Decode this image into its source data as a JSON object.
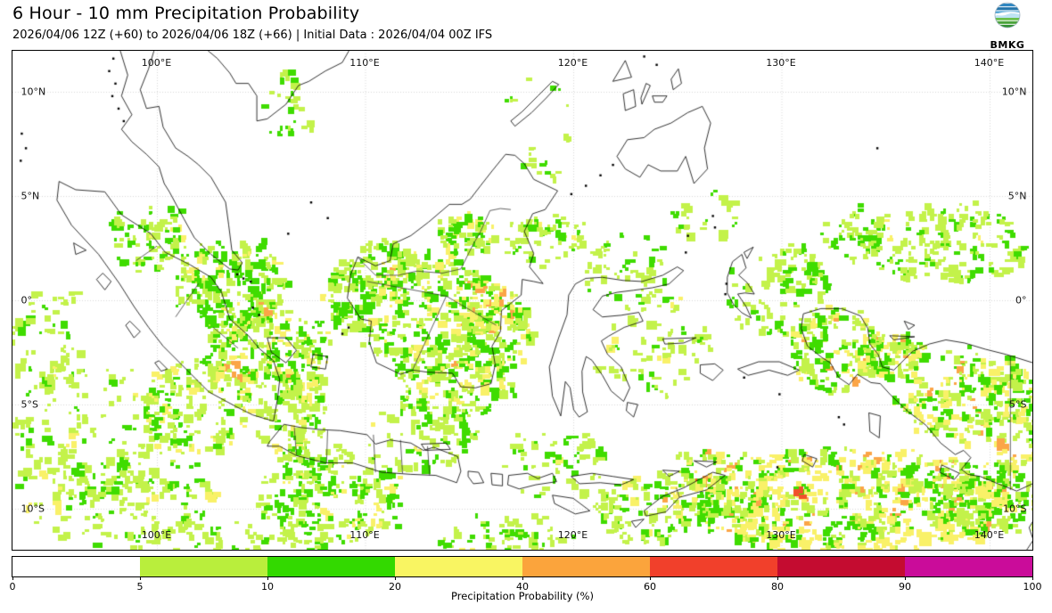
{
  "header": {
    "title": "6 Hour - 10 mm Precipitation Probability",
    "subtitle": "2026/04/06 12Z (+60) to 2026/04/06 18Z (+66) | Initial Data : 2026/04/04 00Z IFS",
    "logo": {
      "text": "BMKG"
    }
  },
  "map": {
    "lon_tick_labels": [
      "100°E",
      "110°E",
      "120°E",
      "130°E",
      "140°E"
    ],
    "lat_tick_labels": [
      "10°N",
      "5°N",
      "0°",
      "5°S",
      "10°S"
    ]
  },
  "colorbar": {
    "axis_label": "Precipitation Probability (%)",
    "tick_labels": [
      "0",
      "5",
      "10",
      "20",
      "40",
      "60",
      "80",
      "90",
      "100"
    ],
    "segment_colors": [
      "#ffffff",
      "#b9ee3c",
      "#33d900",
      "#f9f562",
      "#fba43c",
      "#f1402b",
      "#c40c30",
      "#ca0c9a"
    ]
  },
  "overlay_palette": {
    "p5": "#c3f24a",
    "p10": "#3fdc00",
    "p20": "#f9f168",
    "p40": "#fba547",
    "p60": "#f1502b"
  },
  "precip_clusters_format": "[center_x_px, center_y_px, radius_x, radius_y, blob_count, w_5_10, w_10_20, w_20_40, w_40_60, w_60_80]",
  "precip_clusters": [
    [
      95,
      500,
      85,
      115,
      120,
      0.75,
      0.2,
      0.05,
      0,
      0
    ],
    [
      55,
      380,
      45,
      60,
      40,
      0.8,
      0.2,
      0,
      0,
      0
    ],
    [
      255,
      320,
      62,
      55,
      170,
      0.5,
      0.45,
      0.05,
      0,
      0
    ],
    [
      165,
      265,
      45,
      38,
      60,
      0.62,
      0.36,
      0.02,
      0,
      0
    ],
    [
      300,
      395,
      70,
      55,
      210,
      0.45,
      0.35,
      0.18,
      0.02,
      0
    ],
    [
      215,
      455,
      60,
      55,
      110,
      0.6,
      0.3,
      0.1,
      0,
      0
    ],
    [
      150,
      560,
      90,
      55,
      90,
      0.7,
      0.28,
      0.02,
      0,
      0
    ],
    [
      370,
      555,
      80,
      55,
      150,
      0.48,
      0.42,
      0.1,
      0,
      0
    ],
    [
      330,
      470,
      45,
      40,
      60,
      0.65,
      0.3,
      0.05,
      0,
      0
    ],
    [
      480,
      350,
      80,
      70,
      230,
      0.42,
      0.38,
      0.19,
      0.01,
      0
    ],
    [
      550,
      370,
      45,
      55,
      120,
      0.35,
      0.3,
      0.3,
      0.05,
      0
    ],
    [
      505,
      430,
      70,
      40,
      90,
      0.5,
      0.35,
      0.15,
      0,
      0
    ],
    [
      520,
      262,
      30,
      22,
      45,
      0.45,
      0.3,
      0.2,
      0.05,
      0
    ],
    [
      610,
      265,
      45,
      30,
      50,
      0.65,
      0.3,
      0.05,
      0,
      0
    ],
    [
      430,
      300,
      40,
      32,
      65,
      0.6,
      0.35,
      0.05,
      0,
      0
    ],
    [
      385,
      330,
      30,
      42,
      55,
      0.55,
      0.4,
      0.05,
      0,
      0
    ],
    [
      320,
      122,
      25,
      45,
      18,
      0.5,
      0.5,
      0,
      0,
      0
    ],
    [
      600,
      150,
      45,
      60,
      14,
      0.7,
      0.3,
      0,
      0,
      0
    ],
    [
      1060,
      272,
      95,
      45,
      130,
      0.68,
      0.3,
      0.02,
      0,
      0
    ],
    [
      955,
      262,
      40,
      28,
      35,
      0.7,
      0.3,
      0,
      0,
      0
    ],
    [
      870,
      330,
      60,
      45,
      45,
      0.76,
      0.22,
      0.02,
      0,
      0
    ],
    [
      730,
      388,
      70,
      60,
      50,
      0.75,
      0.22,
      0.03,
      0,
      0
    ],
    [
      700,
      300,
      50,
      40,
      40,
      0.7,
      0.3,
      0,
      0,
      0
    ],
    [
      935,
      390,
      50,
      45,
      115,
      0.4,
      0.35,
      0.2,
      0.05,
      0
    ],
    [
      1000,
      396,
      35,
      25,
      70,
      0.3,
      0.3,
      0.3,
      0.1,
      0
    ],
    [
      1080,
      440,
      80,
      50,
      170,
      0.35,
      0.3,
      0.28,
      0.07,
      0
    ],
    [
      1146,
      470,
      38,
      60,
      60,
      0.4,
      0.3,
      0.25,
      0.05,
      0
    ],
    [
      950,
      560,
      185,
      58,
      500,
      0.22,
      0.25,
      0.44,
      0.085,
      0.005
    ],
    [
      800,
      545,
      60,
      45,
      115,
      0.4,
      0.35,
      0.22,
      0.03,
      0
    ],
    [
      720,
      570,
      52,
      40,
      70,
      0.55,
      0.35,
      0.1,
      0,
      0
    ],
    [
      1100,
      558,
      70,
      45,
      135,
      0.5,
      0.35,
      0.14,
      0.01,
      0
    ],
    [
      620,
      520,
      60,
      40,
      40,
      0.7,
      0.28,
      0.02,
      0,
      0
    ],
    [
      470,
      490,
      60,
      35,
      50,
      0.6,
      0.35,
      0.05,
      0,
      0
    ],
    [
      560,
      600,
      90,
      25,
      60,
      0.65,
      0.3,
      0.05,
      0,
      0
    ],
    [
      250,
      602,
      120,
      18,
      50,
      0.7,
      0.3,
      0,
      0,
      0
    ],
    [
      890,
      300,
      30,
      25,
      25,
      0.7,
      0.3,
      0,
      0,
      0
    ],
    [
      790,
      240,
      40,
      30,
      20,
      0.75,
      0.25,
      0,
      0,
      0
    ]
  ]
}
